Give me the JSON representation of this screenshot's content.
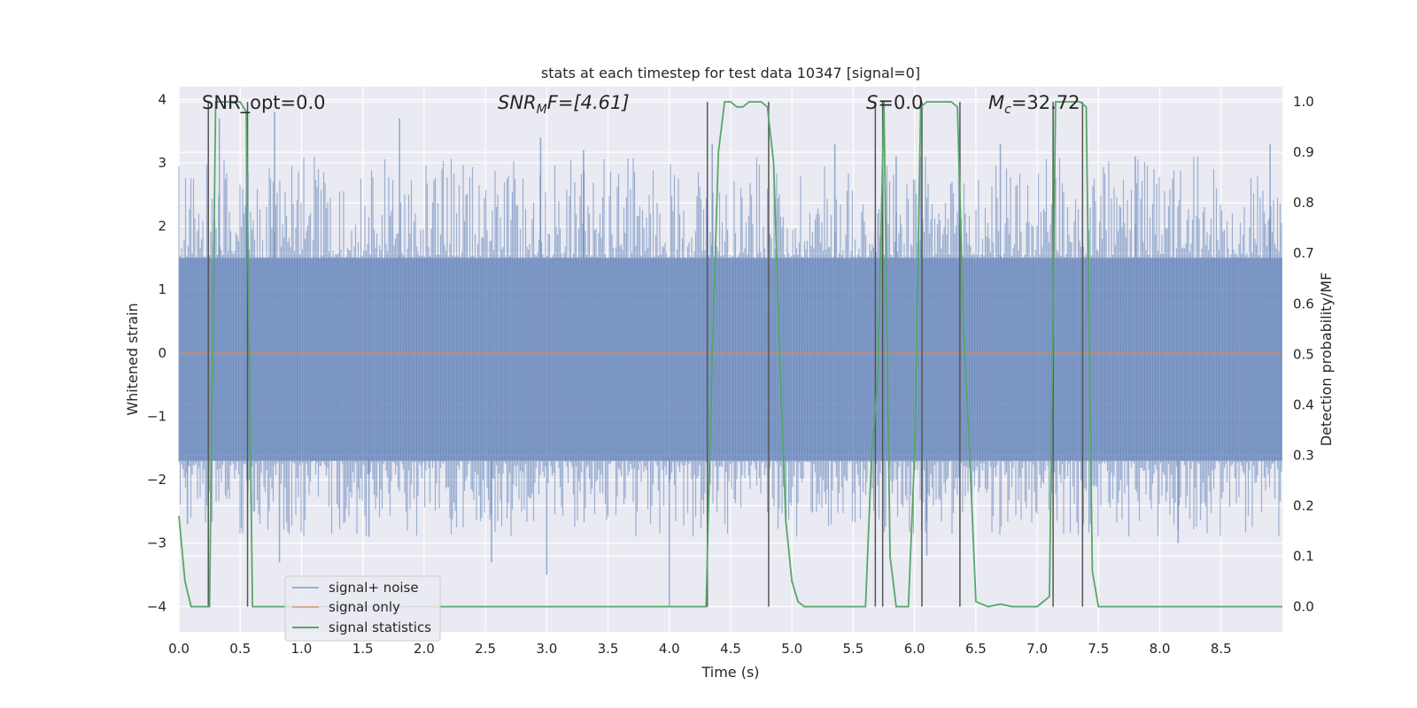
{
  "chart_data": {
    "type": "line",
    "title": "stats at each timestep for test data 10347 [signal=0]",
    "xlabel": "Time (s)",
    "ylabel_left": "Whitened strain",
    "ylabel_right": "Detection probability/MF",
    "xlim": [
      0.0,
      9.0
    ],
    "ylim_left": [
      -4.4,
      4.2
    ],
    "ylim_right": [
      -0.05,
      1.03
    ],
    "xticks": [
      "0.0",
      "0.5",
      "1.0",
      "1.5",
      "2.0",
      "2.5",
      "3.0",
      "3.5",
      "4.0",
      "4.5",
      "5.0",
      "5.5",
      "6.0",
      "6.5",
      "7.0",
      "7.5",
      "8.0",
      "8.5"
    ],
    "yticks_left": [
      "4",
      "3",
      "2",
      "1",
      "0",
      "−1",
      "−2",
      "−3",
      "−4"
    ],
    "yticks_right": [
      "1.0",
      "0.9",
      "0.8",
      "0.7",
      "0.6",
      "0.5",
      "0.4",
      "0.3",
      "0.2",
      "0.1",
      "0.0"
    ],
    "grid": true,
    "legend_position": "lower-left",
    "annotations": {
      "snr_opt": "SNR_opt=0.0",
      "snr_mf_name": "SNR",
      "snr_mf_sub": "M",
      "snr_mf_tail": "F=[4.61]",
      "s_name": "S",
      "s_value": "=0.0",
      "mc_name": "M",
      "mc_sub": "c",
      "mc_value": "=32.72"
    },
    "series": [
      {
        "name": "signal+ noise",
        "color": "#4c72b0",
        "axis": "left",
        "description": "whitened noise, band roughly -1.7 to 1.5 with spikes to about +/-3.5",
        "band_low": -1.7,
        "band_high": 1.5,
        "spikes": [
          [
            0.78,
            3.8
          ],
          [
            0.33,
            3.7
          ],
          [
            0.55,
            3.8
          ],
          [
            1.8,
            3.7
          ],
          [
            2.95,
            3.4
          ],
          [
            3.3,
            3.2
          ],
          [
            4.35,
            3.3
          ],
          [
            5.35,
            3.3
          ],
          [
            5.85,
            3.1
          ],
          [
            6.05,
            3.1
          ],
          [
            6.7,
            3.3
          ],
          [
            7.8,
            3.1
          ],
          [
            8.9,
            3.3
          ],
          [
            0.82,
            -3.3
          ],
          [
            2.55,
            -3.3
          ],
          [
            3.0,
            -3.5
          ],
          [
            4.0,
            -4.0
          ],
          [
            6.1,
            -3.2
          ],
          [
            8.15,
            -3.0
          ],
          [
            0.07,
            -2.7
          ],
          [
            1.55,
            -2.9
          ]
        ]
      },
      {
        "name": "signal only",
        "color": "#dd8452",
        "axis": "left",
        "x": [
          0.0,
          9.0
        ],
        "y": [
          0.0,
          0.0
        ]
      },
      {
        "name": "signal statistics",
        "color": "#55a868",
        "axis": "right",
        "x": [
          0.0,
          0.05,
          0.1,
          0.2,
          0.25,
          0.3,
          0.35,
          0.5,
          0.55,
          0.6,
          0.65,
          0.7,
          1.0,
          4.3,
          4.35,
          4.4,
          4.45,
          4.5,
          4.55,
          4.6,
          4.65,
          4.7,
          4.75,
          4.8,
          4.85,
          4.9,
          4.95,
          5.0,
          5.05,
          5.1,
          5.2,
          5.6,
          5.65,
          5.7,
          5.75,
          5.8,
          5.85,
          5.9,
          5.95,
          6.0,
          6.05,
          6.1,
          6.15,
          6.2,
          6.3,
          6.35,
          6.4,
          6.45,
          6.5,
          6.6,
          6.7,
          6.8,
          7.0,
          7.1,
          7.15,
          7.2,
          7.25,
          7.3,
          7.35,
          7.4,
          7.45,
          7.5,
          7.55,
          7.6,
          9.0
        ],
        "y": [
          0.18,
          0.05,
          0.0,
          0.0,
          0.0,
          1.0,
          1.0,
          1.0,
          0.98,
          0.0,
          0.0,
          0.0,
          0.0,
          0.0,
          0.5,
          0.9,
          1.0,
          1.0,
          0.99,
          0.99,
          1.0,
          1.0,
          1.0,
          0.99,
          0.88,
          0.5,
          0.17,
          0.05,
          0.01,
          0.0,
          0.0,
          0.0,
          0.3,
          0.45,
          1.0,
          0.1,
          0.0,
          0.0,
          0.0,
          0.3,
          0.99,
          1.0,
          1.0,
          1.0,
          1.0,
          0.99,
          0.55,
          0.3,
          0.01,
          0.0,
          0.005,
          0.0,
          0.0,
          0.02,
          1.0,
          1.0,
          1.0,
          1.0,
          1.0,
          0.99,
          0.07,
          0.0,
          0.0,
          0.0,
          0.0
        ]
      }
    ],
    "event_markers": [
      {
        "x": 0.24,
        "ymin": -0.0,
        "ymax": 1.0
      },
      {
        "x": 0.56,
        "ymin": -0.0,
        "ymax": 1.0
      },
      {
        "x": 4.31,
        "ymin": -0.0,
        "ymax": 1.0
      },
      {
        "x": 4.81,
        "ymin": -0.0,
        "ymax": 1.0
      },
      {
        "x": 5.68,
        "ymin": -0.0,
        "ymax": 1.0
      },
      {
        "x": 5.74,
        "ymin": -0.0,
        "ymax": 1.0
      },
      {
        "x": 6.06,
        "ymin": -0.0,
        "ymax": 1.0
      },
      {
        "x": 6.37,
        "ymin": -0.0,
        "ymax": 1.0
      },
      {
        "x": 7.13,
        "ymin": -0.0,
        "ymax": 1.0
      },
      {
        "x": 7.37,
        "ymin": -0.0,
        "ymax": 1.0
      }
    ]
  }
}
